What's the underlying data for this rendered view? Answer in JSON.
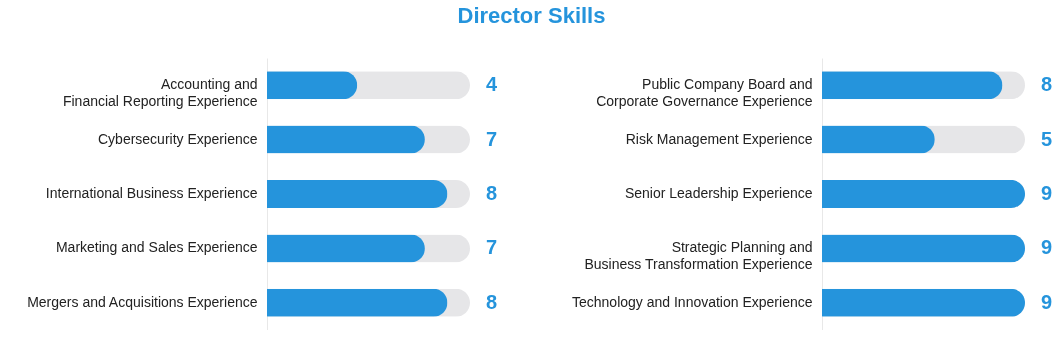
{
  "chart_data": [
    {
      "type": "bar",
      "title": "Director Skills",
      "orientation": "horizontal",
      "categories": [
        "Accounting and\nFinancial Reporting Experience",
        "Cybersecurity Experience",
        "International Business Experience",
        "Marketing and Sales Experience",
        "Mergers and Acquisitions Experience"
      ],
      "values": [
        4,
        7,
        8,
        7,
        8
      ],
      "color": "#2594dc",
      "xlim": [
        0,
        9
      ],
      "data_labels": true,
      "tick_labels": "y"
    },
    {
      "type": "bar",
      "orientation": "horizontal",
      "categories": [
        "Public Company Board and\nCorporate Governance Experience",
        "Risk Management Experience",
        "Senior Leadership Experience",
        "Strategic Planning and\nBusiness Transformation Experience",
        "Technology and Innovation Experience"
      ],
      "values": [
        8,
        5,
        9,
        9,
        9
      ],
      "color": "#2594dc",
      "xlim": [
        0,
        9
      ],
      "data_labels": true,
      "tick_labels": "y"
    }
  ]
}
